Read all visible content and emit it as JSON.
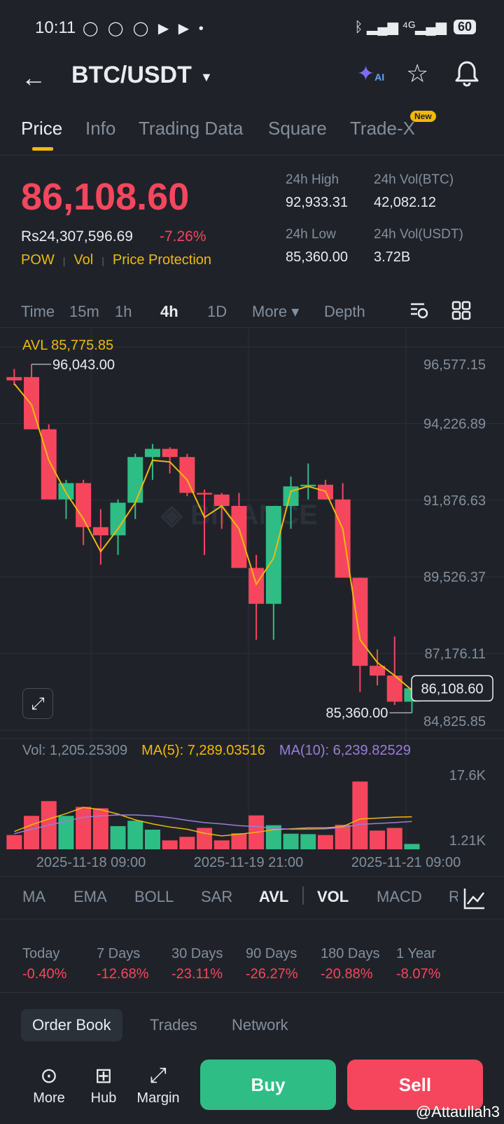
{
  "status_bar": {
    "time": "10:11",
    "app_icons": "◯ ◯ ◯ ▶ ▶ •",
    "signal": "ᛒ ▂▄▆ ⁴ᴳ▂▄▆",
    "battery": "60"
  },
  "header": {
    "pair": "BTC/USDT",
    "ai_label": "AI"
  },
  "tabs": [
    {
      "label": "Price"
    },
    {
      "label": "Info"
    },
    {
      "label": "Trading Data"
    },
    {
      "label": "Square"
    },
    {
      "label": "Trade-X"
    }
  ],
  "new_badge": "New",
  "ticker": {
    "last_price": "86,108.60",
    "fiat_price": "Rs24,307,596.69",
    "change_pct": "-7.26%",
    "tags": [
      "POW",
      "Vol",
      "Price Protection"
    ],
    "high_label": "24h High",
    "high": "92,933.31",
    "low_label": "24h Low",
    "low": "85,360.00",
    "vol_btc_label": "24h Vol(BTC)",
    "vol_btc": "42,082.12",
    "vol_usdt_label": "24h Vol(USDT)",
    "vol_usdt": "3.72B"
  },
  "timebar": {
    "time": "Time",
    "m15": "15m",
    "h1": "1h",
    "h4": "4h",
    "d1": "1D",
    "more": "More ▾",
    "depth": "Depth"
  },
  "chart_data": {
    "type": "candlestick",
    "interval": "4h",
    "title": "",
    "avl": "AVL 85,775.85",
    "ylim": [
      84825.85,
      96577.15
    ],
    "y_ticks": [
      "96,577.15",
      "94,226.89",
      "91,876.63",
      "89,526.37",
      "87,176.11",
      "84,825.85"
    ],
    "y_tick_values": [
      96577.15,
      94226.89,
      91876.63,
      89526.37,
      87176.11,
      84825.85
    ],
    "last_price_label": "86,108.60",
    "last_price": 86108.6,
    "high_marker": "96,043.00",
    "high_value": 96043.0,
    "low_marker": "85,360.00",
    "low_value": 85360.0,
    "x_labels": [
      "2025-11-18 09:00",
      "2025-11-19 21:00",
      "2025-11-21 09:00"
    ],
    "candles": [
      {
        "o": 95650,
        "h": 95900,
        "l": 95400,
        "c": 95550
      },
      {
        "o": 95650,
        "h": 96043,
        "l": 94100,
        "c": 94050
      },
      {
        "o": 94050,
        "h": 94200,
        "l": 92000,
        "c": 91900
      },
      {
        "o": 91900,
        "h": 92500,
        "l": 91300,
        "c": 92400
      },
      {
        "o": 92400,
        "h": 92500,
        "l": 90500,
        "c": 91050
      },
      {
        "o": 91050,
        "h": 91600,
        "l": 89900,
        "c": 90800
      },
      {
        "o": 90800,
        "h": 91900,
        "l": 90200,
        "c": 91800
      },
      {
        "o": 91800,
        "h": 93300,
        "l": 91300,
        "c": 93200
      },
      {
        "o": 93200,
        "h": 93600,
        "l": 92500,
        "c": 93450
      },
      {
        "o": 93450,
        "h": 93500,
        "l": 92700,
        "c": 93200
      },
      {
        "o": 93200,
        "h": 93300,
        "l": 92000,
        "c": 92100
      },
      {
        "o": 92100,
        "h": 92200,
        "l": 90200,
        "c": 92050
      },
      {
        "o": 92050,
        "h": 92100,
        "l": 91000,
        "c": 91700
      },
      {
        "o": 91700,
        "h": 92100,
        "l": 89800,
        "c": 89800
      },
      {
        "o": 89800,
        "h": 90200,
        "l": 87600,
        "c": 88700
      },
      {
        "o": 88700,
        "h": 91700,
        "l": 87600,
        "c": 91700
      },
      {
        "o": 91700,
        "h": 92600,
        "l": 91000,
        "c": 92300
      },
      {
        "o": 92300,
        "h": 93000,
        "l": 91900,
        "c": 92350
      },
      {
        "o": 92350,
        "h": 92500,
        "l": 91900,
        "c": 91900
      },
      {
        "o": 91900,
        "h": 92400,
        "l": 89500,
        "c": 89500
      },
      {
        "o": 89500,
        "h": 89500,
        "l": 86000,
        "c": 86800
      },
      {
        "o": 86800,
        "h": 87300,
        "l": 86200,
        "c": 86500
      },
      {
        "o": 86500,
        "h": 87700,
        "l": 85600,
        "c": 85700
      },
      {
        "o": 85700,
        "h": 86350,
        "l": 85360,
        "c": 86108.6
      }
    ],
    "avl_line": [
      95450,
      94800,
      93100,
      92100,
      91300,
      90300,
      91000,
      91800,
      93100,
      93050,
      92500,
      91350,
      91700,
      91000,
      89300,
      90100,
      92150,
      92300,
      92150,
      91000,
      87600,
      86900,
      86500,
      86050
    ],
    "volume": {
      "label": "Vol: 1,205.25309",
      "ma5_label": "MA(5): 7,289.03516",
      "ma10_label": "MA(10): 6,239.82529",
      "y_ticks": [
        "17.6K",
        "1.21K"
      ],
      "ylim": [
        0,
        17600
      ],
      "values": [
        3200,
        7500,
        10800,
        7500,
        9500,
        9200,
        5200,
        6400,
        4400,
        2000,
        2800,
        4800,
        2000,
        3600,
        7600,
        5400,
        3500,
        3400,
        3200,
        5500,
        15200,
        4200,
        4800,
        1205
      ],
      "ma5": [
        4000,
        5500,
        6800,
        8000,
        9400,
        8900,
        7900,
        6600,
        5700,
        5000,
        4500,
        3600,
        3000,
        3400,
        3800,
        4400,
        4600,
        4800,
        4800,
        5100,
        6800,
        7000,
        7200,
        7289
      ],
      "ma10": [
        3500,
        4500,
        5400,
        6300,
        7200,
        7500,
        7700,
        7700,
        7500,
        7100,
        6500,
        6000,
        5700,
        5300,
        5100,
        4700,
        4500,
        4500,
        4600,
        4900,
        5600,
        5800,
        6000,
        6240
      ]
    }
  },
  "indicators": [
    "MA",
    "EMA",
    "BOLL",
    "SAR",
    "AVL",
    "VOL",
    "MACD",
    "R"
  ],
  "performance": [
    {
      "label": "Today",
      "value": "-0.40%"
    },
    {
      "label": "7 Days",
      "value": "-12.68%"
    },
    {
      "label": "30 Days",
      "value": "-23.11%"
    },
    {
      "label": "90 Days",
      "value": "-26.27%"
    },
    {
      "label": "180 Days",
      "value": "-20.88%"
    },
    {
      "label": "1 Year",
      "value": "-8.07%"
    }
  ],
  "book_tabs": [
    "Order Book",
    "Trades",
    "Network"
  ],
  "bottom_nav": [
    {
      "label": "More",
      "icon": "more-icon"
    },
    {
      "label": "Hub",
      "icon": "hub-icon"
    },
    {
      "label": "Margin",
      "icon": "margin-icon"
    }
  ],
  "buttons": {
    "buy": "Buy",
    "sell": "Sell"
  },
  "watermark": "@Attaullah3",
  "colors": {
    "up": "#2ebd85",
    "down": "#f6465d",
    "accent": "#f0b90b",
    "ma10": "#9c7cd8"
  }
}
